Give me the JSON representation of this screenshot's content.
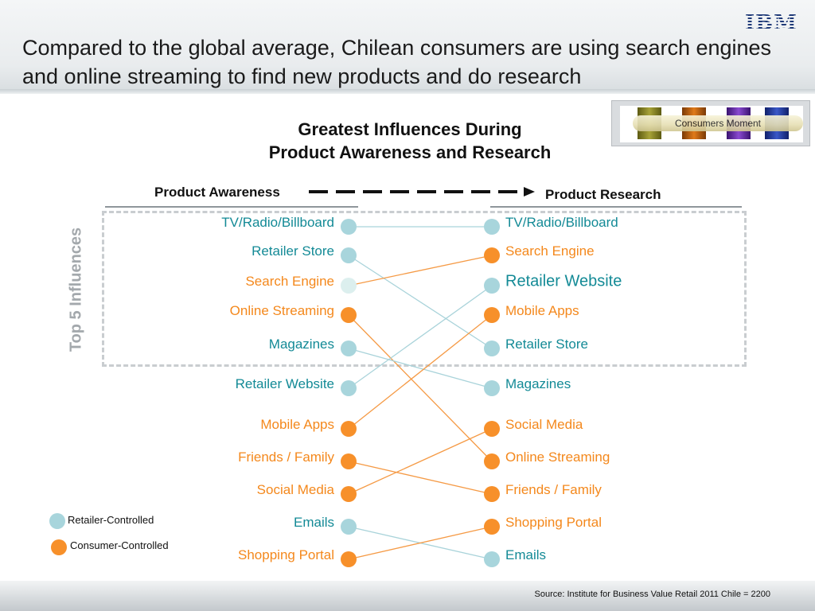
{
  "slide": {
    "title": "Compared to the global average, Chilean consumers are using  search engines and online streaming to find new products and do research",
    "logo": "IBM",
    "badge": "Consumers Moment",
    "source": "Source: Institute for Business Value Retail 2011 Chile  = 2200"
  },
  "diagram": {
    "title_line1": "Greatest Influences During",
    "title_line2": "Product Awareness and Research",
    "left_header": "Product Awareness",
    "right_header": "Product Research",
    "top_group_label": "Top 5 Influences"
  },
  "colors": {
    "retailer": "#a8d5dc",
    "retailer_line": "#a9d3da",
    "retailer_text": "#138a96",
    "consumer": "#f7902a",
    "consumer_line": "#f59a45",
    "consumer_text": "#f4881c",
    "search_faded": "#dcefee"
  },
  "chart_data": {
    "type": "ranked-link-diagram",
    "left_column": [
      {
        "label": "TV/Radio/Billboard",
        "group": "retailer"
      },
      {
        "label": "Retailer Store",
        "group": "retailer"
      },
      {
        "label": "Search Engine",
        "group": "consumer"
      },
      {
        "label": "Online Streaming",
        "group": "consumer"
      },
      {
        "label": "Magazines",
        "group": "retailer"
      },
      {
        "label": "Retailer Website",
        "group": "retailer"
      },
      {
        "label": "Mobile Apps",
        "group": "consumer"
      },
      {
        "label": "Friends / Family",
        "group": "consumer"
      },
      {
        "label": "Social Media",
        "group": "consumer"
      },
      {
        "label": "Emails",
        "group": "retailer"
      },
      {
        "label": "Shopping Portal",
        "group": "consumer"
      }
    ],
    "right_column": [
      {
        "label": "TV/Radio/Billboard",
        "group": "retailer"
      },
      {
        "label": "Search Engine",
        "group": "consumer"
      },
      {
        "label": "Retailer Website",
        "group": "retailer"
      },
      {
        "label": "Mobile Apps",
        "group": "consumer"
      },
      {
        "label": "Retailer Store",
        "group": "retailer"
      },
      {
        "label": "Magazines",
        "group": "retailer"
      },
      {
        "label": "Social Media",
        "group": "consumer"
      },
      {
        "label": "Online Streaming",
        "group": "consumer"
      },
      {
        "label": "Friends / Family",
        "group": "consumer"
      },
      {
        "label": "Shopping Portal",
        "group": "consumer"
      },
      {
        "label": "Emails",
        "group": "retailer"
      }
    ],
    "top_n_highlighted": 5,
    "legend": [
      {
        "label": "Retailer-Controlled",
        "group": "retailer"
      },
      {
        "label": "Consumer-Controlled",
        "group": "consumer"
      }
    ]
  }
}
